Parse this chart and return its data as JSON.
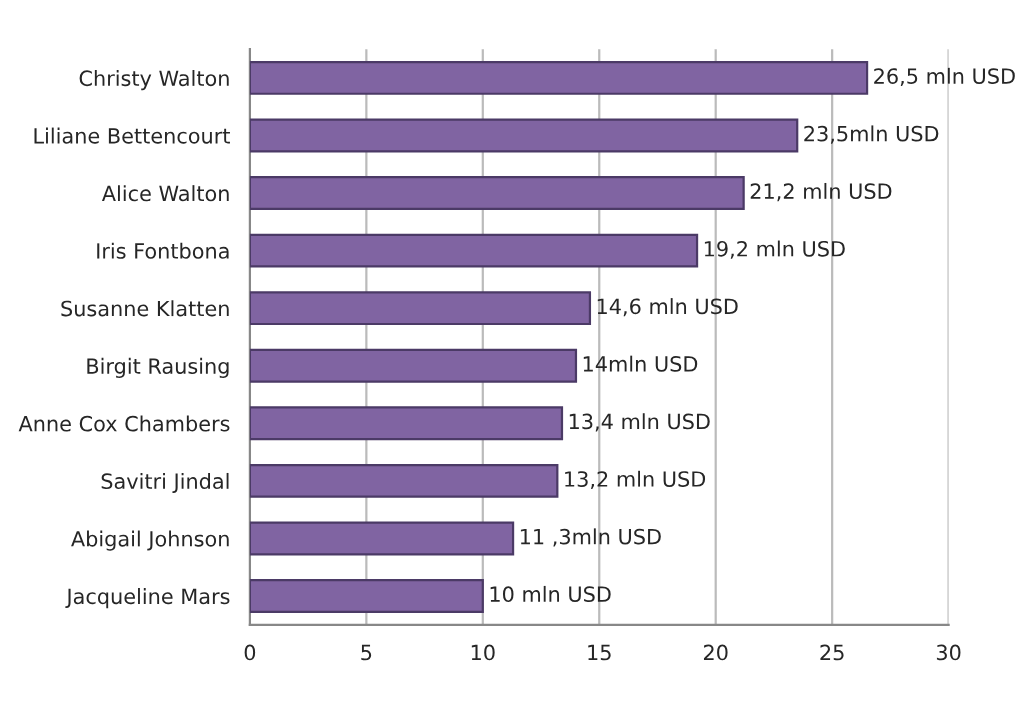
{
  "chart_data": {
    "type": "bar",
    "orientation": "horizontal",
    "categories": [
      "Christy Walton",
      "Liliane Bettencourt",
      "Alice Walton",
      "Iris Fontbona",
      "Susanne Klatten",
      "Birgit Rausing",
      "Anne Cox Chambers",
      "Savitri Jindal",
      "Abigail Johnson",
      "Jacqueline Mars"
    ],
    "values": [
      26.5,
      23.5,
      21.2,
      19.2,
      14.6,
      14,
      13.4,
      13.2,
      11.3,
      10
    ],
    "value_labels": [
      "26,5 mln USD",
      "23,5mln USD",
      "21,2 mln USD",
      "19,2 mln USD",
      "14,6 mln USD",
      "14mln USD",
      "13,4 mln USD",
      "13,2 mln USD",
      "11 ,3mln USD",
      "10 mln USD"
    ],
    "color": "#8064a2",
    "xlim": [
      0,
      30
    ],
    "xticks": [
      0,
      5,
      10,
      15,
      20,
      25,
      30
    ],
    "grid": "x"
  }
}
